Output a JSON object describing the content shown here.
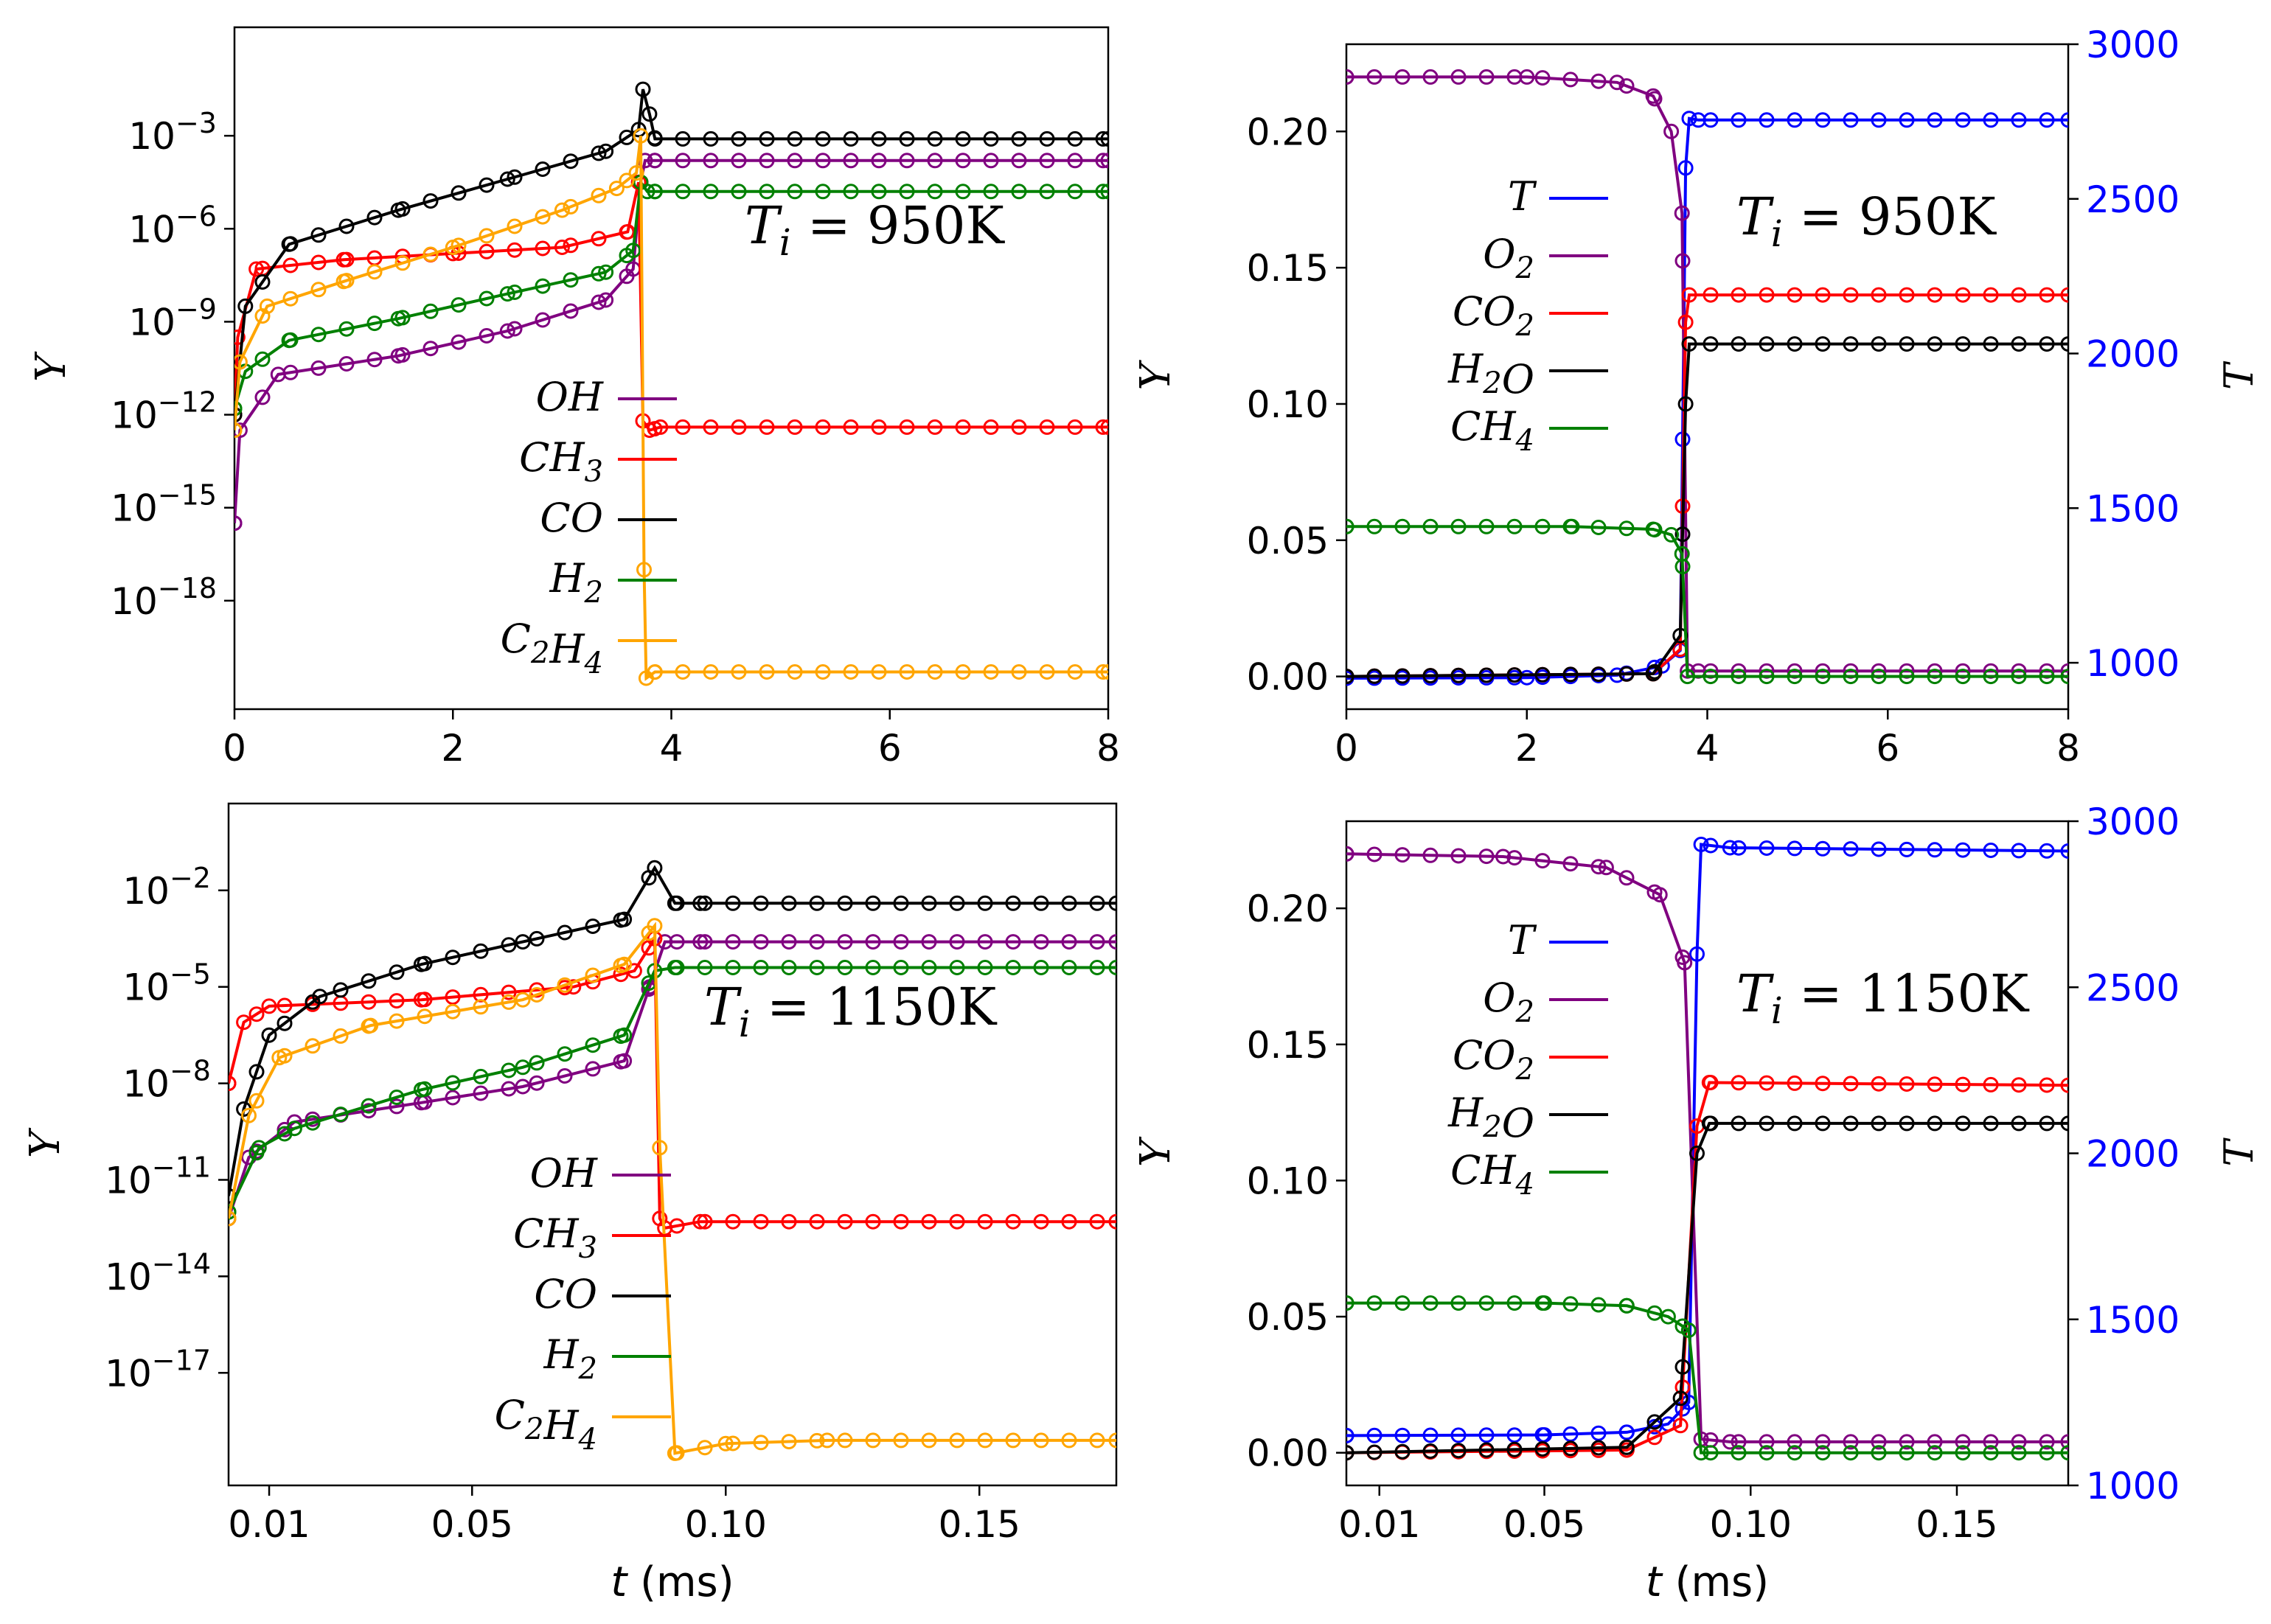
{
  "figure": {
    "y_label": "Y",
    "t_label_right": "T",
    "x_label": "t (ms)"
  },
  "colors": {
    "OH": "#800080",
    "CH3": "#ff0000",
    "CO": "#000000",
    "H2": "#008000",
    "C2H4": "#ffa500",
    "O2": "#800080",
    "CO2": "#ff0000",
    "H2O": "#000000",
    "CH4": "#008000",
    "T": "#0000ff",
    "T_axis": "#0000ff"
  },
  "chart_data": [
    {
      "id": "A",
      "type": "line",
      "yscale": "log",
      "title": "",
      "annotation": "T_i = 950K",
      "xlabel": "",
      "ylabel": "Y",
      "xlim": [
        0,
        8
      ],
      "ylim_log10": [
        -21.5,
        0.5
      ],
      "xticks": [
        0,
        2,
        4,
        6,
        8
      ],
      "xtick_labels": [
        "0",
        "2",
        "4",
        "6",
        "8"
      ],
      "yticks": [
        -3,
        -6,
        -9,
        -12,
        -15,
        -18
      ],
      "ytick_labels": [
        "10-3",
        "10-6",
        "10-9",
        "10-12",
        "10-15",
        "10-18"
      ],
      "legend_position": "center-left",
      "series": [
        {
          "name": "OH",
          "label": "OH",
          "points": [
            [
              0,
              -15.5
            ],
            [
              0.05,
              -12.5
            ],
            [
              0.4,
              -10.7
            ],
            [
              1.5,
              -10.1
            ],
            [
              2.5,
              -9.3
            ],
            [
              3.4,
              -8.3
            ],
            [
              3.65,
              -7.3
            ],
            [
              3.72,
              -4.5
            ],
            [
              3.76,
              -3.8
            ],
            [
              3.85,
              -3.8
            ],
            [
              8,
              -3.8
            ]
          ]
        },
        {
          "name": "CH3",
          "label": "CH3",
          "points": [
            [
              0,
              -12
            ],
            [
              0.03,
              -9.5
            ],
            [
              0.2,
              -7.3
            ],
            [
              1,
              -7.0
            ],
            [
              2,
              -6.8
            ],
            [
              3,
              -6.6
            ],
            [
              3.6,
              -6.1
            ],
            [
              3.7,
              -4.5
            ],
            [
              3.74,
              -12.2
            ],
            [
              3.8,
              -12.5
            ],
            [
              3.9,
              -12.4
            ],
            [
              8,
              -12.4
            ]
          ]
        },
        {
          "name": "CO",
          "label": "CO",
          "points": [
            [
              0,
              -12
            ],
            [
              0.1,
              -8.5
            ],
            [
              0.5,
              -6.5
            ],
            [
              1.5,
              -5.4
            ],
            [
              2.5,
              -4.4
            ],
            [
              3.4,
              -3.5
            ],
            [
              3.7,
              -2.8
            ],
            [
              3.74,
              -1.5
            ],
            [
              3.8,
              -2.3
            ],
            [
              3.85,
              -3.1
            ],
            [
              8,
              -3.1
            ]
          ]
        },
        {
          "name": "H2",
          "label": "H2",
          "points": [
            [
              0,
              -11.8
            ],
            [
              0.1,
              -10.6
            ],
            [
              0.5,
              -9.6
            ],
            [
              1.5,
              -8.9
            ],
            [
              2.5,
              -8.1
            ],
            [
              3.4,
              -7.4
            ],
            [
              3.65,
              -6.7
            ],
            [
              3.72,
              -4.5
            ],
            [
              3.78,
              -4.8
            ],
            [
              3.85,
              -4.8
            ],
            [
              8,
              -4.8
            ]
          ]
        },
        {
          "name": "C2H4",
          "label": "C2H4",
          "points": [
            [
              0,
              -12.5
            ],
            [
              0.05,
              -10.3
            ],
            [
              0.3,
              -8.5
            ],
            [
              1,
              -7.7
            ],
            [
              2,
              -6.6
            ],
            [
              3,
              -5.4
            ],
            [
              3.5,
              -4.7
            ],
            [
              3.68,
              -4.2
            ],
            [
              3.72,
              -3.0
            ],
            [
              3.75,
              -17
            ],
            [
              3.77,
              -20.5
            ],
            [
              3.85,
              -20.3
            ],
            [
              8,
              -20.3
            ]
          ]
        }
      ]
    },
    {
      "id": "B",
      "type": "line",
      "yscale": "linear",
      "annotation": "T_i = 950K",
      "xlabel": "",
      "ylabel": "Y",
      "ylabel_right": "T",
      "xlim": [
        0,
        8
      ],
      "ylim": [
        -0.012,
        0.232
      ],
      "ylim_right": [
        850,
        3000
      ],
      "xticks": [
        0,
        2,
        4,
        6,
        8
      ],
      "xtick_labels": [
        "0",
        "2",
        "4",
        "6",
        "8"
      ],
      "yticks": [
        0.0,
        0.05,
        0.1,
        0.15,
        0.2
      ],
      "ytick_labels": [
        "0.00",
        "0.05",
        "0.10",
        "0.15",
        "0.20"
      ],
      "yticks_right": [
        1000,
        1500,
        2000,
        2500,
        3000
      ],
      "ytick_labels_right": [
        "1000",
        "1500",
        "2000",
        "2500",
        "3000"
      ],
      "legend_position": "upper-left",
      "series": [
        {
          "name": "T",
          "label": "T",
          "axis": "right",
          "points": [
            [
              0,
              950
            ],
            [
              2,
              952
            ],
            [
              3,
              960
            ],
            [
              3.5,
              990
            ],
            [
              3.7,
              1040
            ],
            [
              3.76,
              2600
            ],
            [
              3.8,
              2760
            ],
            [
              3.9,
              2755
            ],
            [
              8,
              2755
            ]
          ]
        },
        {
          "name": "O2",
          "label": "O2",
          "axis": "left",
          "points": [
            [
              0,
              0.22
            ],
            [
              2,
              0.22
            ],
            [
              3,
              0.218
            ],
            [
              3.4,
              0.213
            ],
            [
              3.6,
              0.2
            ],
            [
              3.72,
              0.17
            ],
            [
              3.78,
              0.002
            ],
            [
              3.9,
              0.002
            ],
            [
              8,
              0.002
            ]
          ]
        },
        {
          "name": "CO2",
          "label": "CO2",
          "axis": "left",
          "points": [
            [
              0,
              0
            ],
            [
              3.4,
              0.001
            ],
            [
              3.7,
              0.01
            ],
            [
              3.76,
              0.13
            ],
            [
              3.8,
              0.14
            ],
            [
              8,
              0.14
            ]
          ]
        },
        {
          "name": "H2O",
          "label": "H2O",
          "axis": "left",
          "points": [
            [
              0,
              0
            ],
            [
              3.4,
              0.001
            ],
            [
              3.7,
              0.015
            ],
            [
              3.76,
              0.1
            ],
            [
              3.8,
              0.122
            ],
            [
              8,
              0.122
            ]
          ]
        },
        {
          "name": "CH4",
          "label": "CH4",
          "axis": "left",
          "points": [
            [
              0,
              0.055
            ],
            [
              2.5,
              0.055
            ],
            [
              3.4,
              0.054
            ],
            [
              3.6,
              0.052
            ],
            [
              3.72,
              0.045
            ],
            [
              3.78,
              0.0
            ],
            [
              8,
              0.0
            ]
          ]
        }
      ]
    },
    {
      "id": "C",
      "type": "line",
      "yscale": "log",
      "annotation": "T_i = 1150K",
      "xlabel": "t (ms)",
      "ylabel": "Y",
      "xlim": [
        0.002,
        0.177
      ],
      "ylim_log10": [
        -20.5,
        0.7
      ],
      "xticks": [
        0.01,
        0.05,
        0.1,
        0.15
      ],
      "xtick_labels": [
        "0.01",
        "0.05",
        "0.10",
        "0.15"
      ],
      "yticks": [
        -2,
        -5,
        -8,
        -11,
        -14,
        -17
      ],
      "ytick_labels": [
        "10-2",
        "10-5",
        "10-8",
        "10-11",
        "10-14",
        "10-17"
      ],
      "legend_position": "center-left",
      "series": [
        {
          "name": "OH",
          "label": "OH",
          "points": [
            [
              0.002,
              -12.2
            ],
            [
              0.006,
              -10.3
            ],
            [
              0.015,
              -9.2
            ],
            [
              0.04,
              -8.6
            ],
            [
              0.06,
              -8.1
            ],
            [
              0.08,
              -7.3
            ],
            [
              0.085,
              -5
            ],
            [
              0.088,
              -3.6
            ],
            [
              0.095,
              -3.6
            ],
            [
              0.177,
              -3.6
            ]
          ]
        },
        {
          "name": "CH3",
          "label": "CH3",
          "points": [
            [
              0.002,
              -8
            ],
            [
              0.005,
              -6.1
            ],
            [
              0.01,
              -5.6
            ],
            [
              0.04,
              -5.4
            ],
            [
              0.07,
              -5.0
            ],
            [
              0.082,
              -4.5
            ],
            [
              0.086,
              -3.5
            ],
            [
              0.087,
              -12.2
            ],
            [
              0.088,
              -12.5
            ],
            [
              0.095,
              -12.3
            ],
            [
              0.177,
              -12.3
            ]
          ]
        },
        {
          "name": "CO",
          "label": "CO",
          "points": [
            [
              0.002,
              -11.5
            ],
            [
              0.005,
              -8.8
            ],
            [
              0.01,
              -6.5
            ],
            [
              0.02,
              -5.3
            ],
            [
              0.04,
              -4.3
            ],
            [
              0.06,
              -3.6
            ],
            [
              0.08,
              -2.9
            ],
            [
              0.086,
              -1.3
            ],
            [
              0.09,
              -2.4
            ],
            [
              0.095,
              -2.4
            ],
            [
              0.177,
              -2.4
            ]
          ]
        },
        {
          "name": "H2",
          "label": "H2",
          "points": [
            [
              0.002,
              -12
            ],
            [
              0.008,
              -10
            ],
            [
              0.015,
              -9.4
            ],
            [
              0.04,
              -8.2
            ],
            [
              0.06,
              -7.5
            ],
            [
              0.08,
              -6.5
            ],
            [
              0.086,
              -4.5
            ],
            [
              0.09,
              -4.4
            ],
            [
              0.177,
              -4.4
            ]
          ]
        },
        {
          "name": "C2H4",
          "label": "C2H4",
          "points": [
            [
              0.002,
              -12.2
            ],
            [
              0.006,
              -9
            ],
            [
              0.012,
              -7.2
            ],
            [
              0.03,
              -6.2
            ],
            [
              0.06,
              -5.4
            ],
            [
              0.08,
              -4.3
            ],
            [
              0.086,
              -3.1
            ],
            [
              0.087,
              -10
            ],
            [
              0.09,
              -19.5
            ],
            [
              0.1,
              -19.2
            ],
            [
              0.12,
              -19.1
            ],
            [
              0.177,
              -19.1
            ]
          ]
        }
      ]
    },
    {
      "id": "D",
      "type": "line",
      "yscale": "linear",
      "annotation": "T_i = 1150K",
      "xlabel": "t (ms)",
      "ylabel": "Y",
      "ylabel_right": "T",
      "xlim": [
        0.002,
        0.177
      ],
      "ylim": [
        -0.012,
        0.232
      ],
      "ylim_right": [
        1000,
        3000
      ],
      "xticks": [
        0.01,
        0.05,
        0.1,
        0.15
      ],
      "xtick_labels": [
        "0.01",
        "0.05",
        "0.10",
        "0.15"
      ],
      "yticks": [
        0.0,
        0.05,
        0.1,
        0.15,
        0.2
      ],
      "ytick_labels": [
        "0.00",
        "0.05",
        "0.10",
        "0.15",
        "0.20"
      ],
      "yticks_right": [
        1000,
        1500,
        2000,
        2500,
        3000
      ],
      "ytick_labels_right": [
        "1000",
        "1500",
        "2000",
        "2500",
        "3000"
      ],
      "legend_position": "upper-left",
      "series": [
        {
          "name": "T",
          "label": "T",
          "axis": "right",
          "points": [
            [
              0.002,
              1150
            ],
            [
              0.05,
              1152
            ],
            [
              0.07,
              1160
            ],
            [
              0.08,
              1185
            ],
            [
              0.085,
              1250
            ],
            [
              0.087,
              2600
            ],
            [
              0.088,
              2930
            ],
            [
              0.095,
              2920
            ],
            [
              0.177,
              2910
            ]
          ]
        },
        {
          "name": "O2",
          "label": "O2",
          "axis": "left",
          "points": [
            [
              0.002,
              0.22
            ],
            [
              0.04,
              0.219
            ],
            [
              0.065,
              0.215
            ],
            [
              0.078,
              0.205
            ],
            [
              0.084,
              0.18
            ],
            [
              0.088,
              0.005
            ],
            [
              0.095,
              0.004
            ],
            [
              0.177,
              0.004
            ]
          ]
        },
        {
          "name": "CO2",
          "label": "CO2",
          "axis": "left",
          "points": [
            [
              0.002,
              0
            ],
            [
              0.07,
              0.001
            ],
            [
              0.083,
              0.01
            ],
            [
              0.087,
              0.12
            ],
            [
              0.09,
              0.136
            ],
            [
              0.177,
              0.135
            ]
          ]
        },
        {
          "name": "H2O",
          "label": "H2O",
          "axis": "left",
          "points": [
            [
              0.002,
              0
            ],
            [
              0.07,
              0.002
            ],
            [
              0.083,
              0.02
            ],
            [
              0.087,
              0.11
            ],
            [
              0.09,
              0.121
            ],
            [
              0.177,
              0.121
            ]
          ]
        },
        {
          "name": "CH4",
          "label": "CH4",
          "axis": "left",
          "points": [
            [
              0.002,
              0.055
            ],
            [
              0.05,
              0.055
            ],
            [
              0.07,
              0.054
            ],
            [
              0.08,
              0.05
            ],
            [
              0.085,
              0.045
            ],
            [
              0.088,
              0
            ],
            [
              0.177,
              0
            ]
          ]
        }
      ]
    }
  ]
}
